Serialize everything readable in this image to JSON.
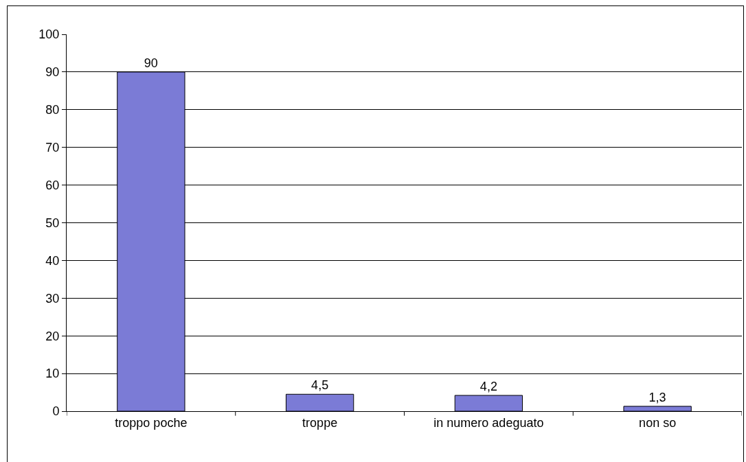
{
  "chart_data": {
    "type": "bar",
    "categories": [
      "troppo poche",
      "troppe",
      "in numero adeguato",
      "non so"
    ],
    "values": [
      90,
      4.5,
      4.2,
      1.3
    ],
    "value_labels": [
      "90",
      "4,5",
      "4,2",
      "1,3"
    ],
    "color": "#7b7bd6",
    "ylim": [
      0,
      100
    ],
    "yticks": [
      0,
      10,
      20,
      30,
      40,
      50,
      60,
      70,
      80,
      90,
      100
    ],
    "grid": "y",
    "legend": false
  }
}
